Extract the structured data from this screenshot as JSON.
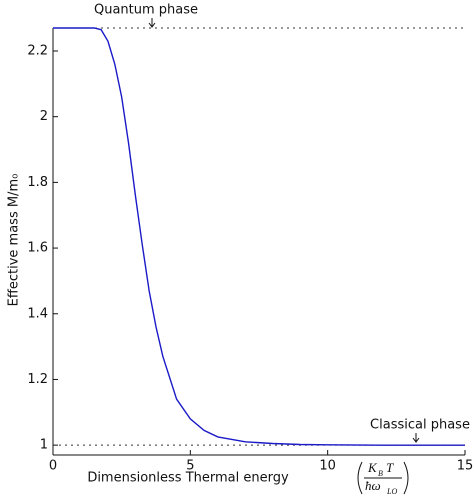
{
  "chart_data": {
    "type": "line",
    "x_label": "Dimensionless Thermal energy",
    "x_label_fraction": {
      "numerator": {
        "symbol": "K",
        "sub": "B",
        "tail": "T"
      },
      "denominator": {
        "symbol": "ħω",
        "sub": "LO"
      }
    },
    "y_label": "Effective mass M/m₀",
    "annotations": [
      "Quantum phase",
      "Classical phase"
    ],
    "reference_lines": [
      2.27,
      1.0
    ],
    "x": [
      0,
      0.5,
      1,
      1.5,
      1.75,
      2,
      2.25,
      2.5,
      2.75,
      3,
      3.25,
      3.5,
      3.75,
      4,
      4.5,
      5,
      5.5,
      6,
      7,
      8,
      9,
      10,
      12,
      15
    ],
    "series": [
      {
        "color": "#1a1ac8",
        "values": [
          2.27,
          2.27,
          2.27,
          2.27,
          2.265,
          2.23,
          2.16,
          2.06,
          1.92,
          1.76,
          1.61,
          1.47,
          1.36,
          1.27,
          1.14,
          1.08,
          1.045,
          1.025,
          1.01,
          1.005,
          1.002,
          1.001,
          1.0,
          1.0
        ]
      }
    ],
    "xlim": [
      0,
      15
    ],
    "xticks": [
      0,
      5,
      10,
      15
    ],
    "ylim": [
      0.97,
      2.27
    ],
    "yticks": [
      1,
      1.2,
      1.4,
      1.6,
      1.8,
      2,
      2.2
    ]
  }
}
